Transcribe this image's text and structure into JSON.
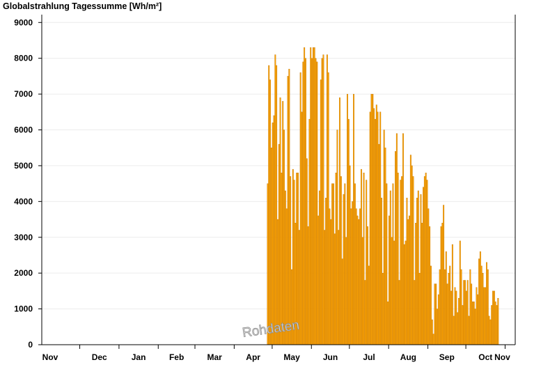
{
  "chart_data": {
    "type": "bar",
    "title": "Globalstrahlung Tagessumme [Wh/m²]",
    "xlabel": "",
    "ylabel": "",
    "ylim": [
      0,
      9200
    ],
    "yticks": [
      0,
      1000,
      2000,
      3000,
      4000,
      5000,
      6000,
      7000,
      8000,
      9000
    ],
    "x_range": [
      "2019-11-01",
      "2020-11-09"
    ],
    "month_labels": [
      "Nov",
      "Dec",
      "Jan",
      "Feb",
      "Mar",
      "Apr",
      "May",
      "Jun",
      "Jul",
      "Aug",
      "Sep",
      "Oct",
      "Nov"
    ],
    "grid": true,
    "bar_color": "#ffa500",
    "bar_edge_color": "#b86b00",
    "watermark": "Rohdaten",
    "series": [
      {
        "start_date": "2020-04-27",
        "values": [
          4500,
          7800,
          7400,
          5500,
          6200,
          6400,
          8100,
          7800,
          3500,
          5600,
          6900,
          4800,
          6800,
          6000,
          4300,
          3800,
          7500,
          7700,
          4700,
          2100,
          4900,
          4600,
          3400,
          4800,
          4800,
          3200,
          7600,
          6500,
          7900,
          8300,
          8000,
          5200,
          3300,
          6300,
          8300,
          8000,
          8300,
          8300,
          8000,
          7900,
          3600,
          4300,
          7400,
          8000,
          8100,
          3200,
          4100,
          8100,
          7600,
          3800,
          3500,
          4500,
          4500,
          3100,
          4800,
          6000,
          3200,
          6900,
          4700,
          2400,
          4200,
          4500,
          3000,
          7000,
          6300,
          5000,
          3800,
          4000,
          7000,
          4500,
          3800,
          3600,
          3500,
          3800,
          4900,
          3000,
          4800,
          1800,
          4600,
          3300,
          2200,
          6500,
          7000,
          7000,
          6600,
          6300,
          6700,
          6500,
          5600,
          6500,
          4100,
          2000,
          6000,
          5500,
          4500,
          1200,
          3600,
          4300,
          3000,
          4500,
          2900,
          5400,
          5900,
          4800,
          1800,
          4600,
          4700,
          5900,
          2800,
          2900,
          4100,
          3500,
          3600,
          5300,
          5000,
          4700,
          1800,
          3400,
          4100,
          4300,
          2000,
          4200,
          3400,
          4400,
          4700,
          4800,
          4600,
          3800,
          3300,
          2200,
          700,
          300,
          1700,
          1700,
          1000,
          1400,
          2100,
          3300,
          3400,
          3900,
          2100,
          2600,
          1700,
          2000,
          2200,
          1500,
          2800,
          800,
          1600,
          1500,
          900,
          1300,
          2900,
          2100,
          1100,
          1800,
          1800,
          1500,
          1800,
          800,
          2100,
          1700,
          1200,
          1200,
          1000,
          1600,
          1400,
          2400,
          2600,
          2200,
          2000,
          1600,
          1600,
          2300,
          2100,
          800,
          700,
          1100,
          1500,
          1500,
          1200,
          1100,
          1300
        ]
      }
    ]
  }
}
